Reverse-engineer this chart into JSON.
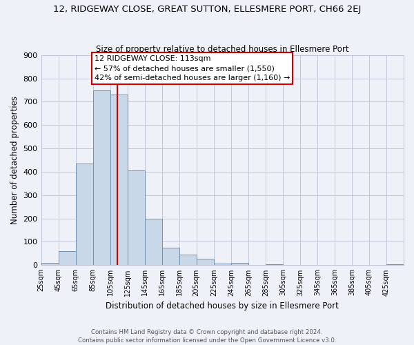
{
  "title": "12, RIDGEWAY CLOSE, GREAT SUTTON, ELLESMERE PORT, CH66 2EJ",
  "subtitle": "Size of property relative to detached houses in Ellesmere Port",
  "xlabel": "Distribution of detached houses by size in Ellesmere Port",
  "ylabel": "Number of detached properties",
  "bin_labels": [
    "25sqm",
    "45sqm",
    "65sqm",
    "85sqm",
    "105sqm",
    "125sqm",
    "145sqm",
    "165sqm",
    "185sqm",
    "205sqm",
    "225sqm",
    "245sqm",
    "265sqm",
    "285sqm",
    "305sqm",
    "325sqm",
    "345sqm",
    "365sqm",
    "385sqm",
    "405sqm",
    "425sqm"
  ],
  "bar_values": [
    10,
    60,
    435,
    748,
    730,
    405,
    200,
    75,
    45,
    27,
    8,
    10,
    0,
    5,
    0,
    0,
    0,
    0,
    0,
    0,
    5
  ],
  "bar_color": "#c8d8e8",
  "bar_edge_color": "#7090b0",
  "property_line_x": 113,
  "property_line_label": "12 RIDGEWAY CLOSE: 113sqm",
  "annotation_line1": "← 57% of detached houses are smaller (1,550)",
  "annotation_line2": "42% of semi-detached houses are larger (1,160) →",
  "annotation_box_color": "#ffffff",
  "annotation_box_edge": "#cc0000",
  "vline_color": "#cc0000",
  "ylim": [
    0,
    900
  ],
  "yticks": [
    0,
    100,
    200,
    300,
    400,
    500,
    600,
    700,
    800,
    900
  ],
  "grid_color": "#c0c8d8",
  "bg_color": "#eef2f8",
  "footer_line1": "Contains HM Land Registry data © Crown copyright and database right 2024.",
  "footer_line2": "Contains public sector information licensed under the Open Government Licence v3.0."
}
